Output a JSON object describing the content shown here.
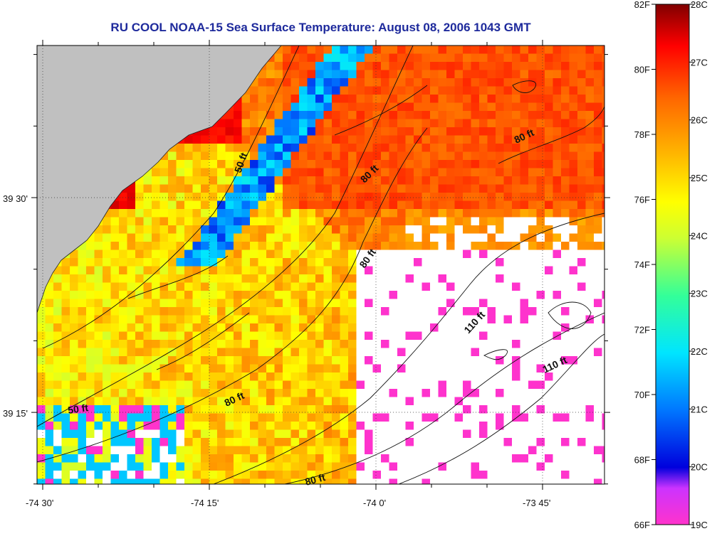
{
  "title": "RU COOL  NOAA-15  Sea Surface Temperature:  August 08, 2006 1043 GMT",
  "x_ticks": [
    "-74 30'",
    "-74 15'",
    "-74 0'",
    "-73 45'"
  ],
  "y_ticks": [
    "39 30'",
    "39 15'"
  ],
  "colorbar": {
    "fahrenheit": [
      "82F",
      "80F",
      "78F",
      "76F",
      "74F",
      "72F",
      "70F",
      "68F",
      "66F"
    ],
    "celsius": [
      "28C",
      "27C",
      "26C",
      "25C",
      "24C",
      "23C",
      "22C",
      "21C",
      "20C",
      "19C"
    ],
    "range_c": [
      19,
      28
    ],
    "range_f": [
      66,
      82
    ]
  },
  "depth_labels": [
    "50 ft",
    "80 ft",
    "80 ft",
    "80 ft",
    "50 ft",
    "80 ft",
    "110 ft",
    "110 ft",
    "80 ft"
  ],
  "colors": {
    "land": "#c0c0c0",
    "no_data": "#ffffff",
    "title": "#1e2a9c"
  }
}
